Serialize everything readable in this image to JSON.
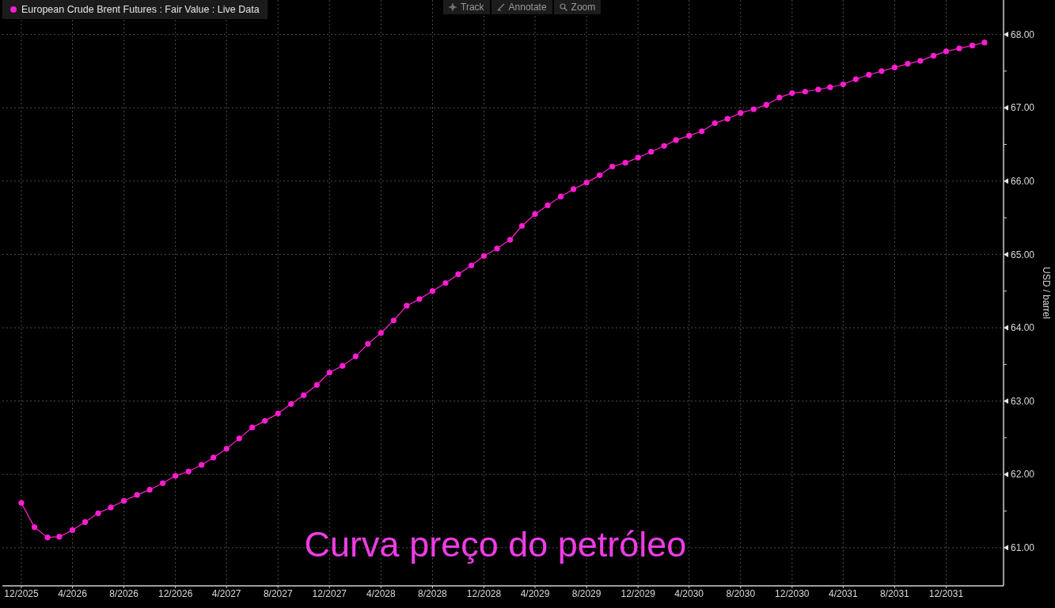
{
  "chart_data": {
    "type": "line",
    "title": "Curva preço do petróleo",
    "ylabel": "USD / barrel",
    "annotations": [
      "Track",
      "Annotate",
      "Zoom"
    ],
    "x": [
      "2025-12",
      "2026-01",
      "2026-02",
      "2026-03",
      "2026-04",
      "2026-05",
      "2026-06",
      "2026-07",
      "2026-08",
      "2026-09",
      "2026-10",
      "2026-11",
      "2026-12",
      "2027-01",
      "2027-02",
      "2027-03",
      "2027-04",
      "2027-05",
      "2027-06",
      "2027-07",
      "2027-08",
      "2027-09",
      "2027-10",
      "2027-11",
      "2027-12",
      "2028-01",
      "2028-02",
      "2028-03",
      "2028-04",
      "2028-05",
      "2028-06",
      "2028-07",
      "2028-08",
      "2028-09",
      "2028-10",
      "2028-11",
      "2028-12",
      "2029-01",
      "2029-02",
      "2029-03",
      "2029-04",
      "2029-05",
      "2029-06",
      "2029-07",
      "2029-08",
      "2029-09",
      "2029-10",
      "2029-11",
      "2029-12",
      "2030-01",
      "2030-02",
      "2030-03",
      "2030-04",
      "2030-05",
      "2030-06",
      "2030-07",
      "2030-08",
      "2030-09",
      "2030-10",
      "2030-11",
      "2030-12",
      "2031-01",
      "2031-02",
      "2031-03",
      "2031-04",
      "2031-05",
      "2031-06",
      "2031-07",
      "2031-08",
      "2031-09",
      "2031-10",
      "2031-11",
      "2031-12",
      "2032-01",
      "2032-02",
      "2032-03"
    ],
    "series": [
      {
        "name": "European Crude Brent Futures : Fair Value : Live Data",
        "color": "#ff1ecf",
        "values": [
          61.61,
          61.28,
          61.14,
          61.15,
          61.24,
          61.35,
          61.47,
          61.55,
          61.64,
          61.72,
          61.79,
          61.88,
          61.98,
          62.04,
          62.13,
          62.23,
          62.35,
          62.49,
          62.64,
          62.73,
          62.83,
          62.96,
          63.08,
          63.22,
          63.39,
          63.48,
          63.61,
          63.78,
          63.93,
          64.1,
          64.3,
          64.39,
          64.5,
          64.61,
          64.73,
          64.85,
          64.98,
          65.08,
          65.2,
          65.39,
          65.55,
          65.67,
          65.79,
          65.89,
          65.98,
          66.08,
          66.2,
          66.25,
          66.32,
          66.4,
          66.48,
          66.56,
          66.62,
          66.68,
          66.79,
          66.85,
          66.93,
          66.98,
          67.04,
          67.14,
          67.2,
          67.22,
          67.25,
          67.28,
          67.32,
          67.39,
          67.45,
          67.5,
          67.55,
          67.6,
          67.64,
          67.71,
          67.77,
          67.81,
          67.85,
          67.89
        ]
      }
    ],
    "xlim": [
      "2025-10-17",
      "2032-04-15"
    ],
    "xticks": [
      {
        "value": "2025-12",
        "label": "12/2025"
      },
      {
        "value": "2026-04",
        "label": "4/2026"
      },
      {
        "value": "2026-08",
        "label": "8/2026"
      },
      {
        "value": "2026-12",
        "label": "12/2026"
      },
      {
        "value": "2027-04",
        "label": "4/2027"
      },
      {
        "value": "2027-08",
        "label": "8/2027"
      },
      {
        "value": "2027-12",
        "label": "12/2027"
      },
      {
        "value": "2028-04",
        "label": "4/2028"
      },
      {
        "value": "2028-08",
        "label": "8/2028"
      },
      {
        "value": "2028-12",
        "label": "12/2028"
      },
      {
        "value": "2029-04",
        "label": "4/2029"
      },
      {
        "value": "2029-08",
        "label": "8/2029"
      },
      {
        "value": "2029-12",
        "label": "12/2029"
      },
      {
        "value": "2030-04",
        "label": "4/2030"
      },
      {
        "value": "2030-08",
        "label": "8/2030"
      },
      {
        "value": "2030-12",
        "label": "12/2030"
      },
      {
        "value": "2031-04",
        "label": "4/2031"
      },
      {
        "value": "2031-08",
        "label": "8/2031"
      },
      {
        "value": "2031-12",
        "label": "12/2031"
      }
    ],
    "ylim": [
      60.48,
      68.47
    ],
    "yticks": [
      {
        "value": 61,
        "label": "61.00"
      },
      {
        "value": 61.5,
        "label": null
      },
      {
        "value": 62,
        "label": "62.00"
      },
      {
        "value": 62.5,
        "label": null
      },
      {
        "value": 63,
        "label": "63.00"
      },
      {
        "value": 63.5,
        "label": null
      },
      {
        "value": 64,
        "label": "64.00"
      },
      {
        "value": 64.5,
        "label": null
      },
      {
        "value": 65,
        "label": "65.00"
      },
      {
        "value": 65.5,
        "label": null
      },
      {
        "value": 66,
        "label": "66.00"
      },
      {
        "value": 66.5,
        "label": null
      },
      {
        "value": 67,
        "label": "67.00"
      },
      {
        "value": 67.5,
        "label": null
      },
      {
        "value": 68,
        "label": "68.00"
      }
    ],
    "grid": true,
    "legend": "top left",
    "marker": "circle",
    "line_style": "solid"
  }
}
